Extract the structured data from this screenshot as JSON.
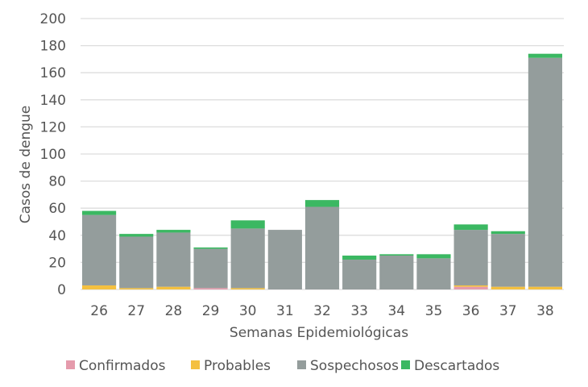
{
  "chart_data": {
    "type": "bar",
    "stacked": true,
    "title": "",
    "xlabel": "Semanas Epidemiológicas",
    "ylabel": "Casos de dengue",
    "ylim": [
      0,
      200
    ],
    "yticks": [
      0,
      20,
      40,
      60,
      80,
      100,
      120,
      140,
      160,
      180,
      200
    ],
    "grid": true,
    "legend_position": "bottom",
    "categories": [
      "26",
      "27",
      "28",
      "29",
      "30",
      "31",
      "32",
      "33",
      "34",
      "35",
      "36",
      "37",
      "38"
    ],
    "series": [
      {
        "name": "Confirmados",
        "color": "#e59bac",
        "values": [
          0,
          0,
          0,
          1,
          0,
          0,
          0,
          0,
          0,
          0,
          2,
          0,
          0
        ]
      },
      {
        "name": "Probables",
        "color": "#f4c040",
        "values": [
          3,
          1,
          2,
          0,
          1,
          0,
          0,
          0,
          0,
          0,
          1,
          2,
          2
        ]
      },
      {
        "name": "Sospechosos",
        "color": "#949d9c",
        "values": [
          52,
          38,
          40,
          29,
          44,
          44,
          61,
          22,
          25,
          23,
          41,
          39,
          169
        ]
      },
      {
        "name": "Descartados",
        "color": "#3bb862",
        "values": [
          3,
          2,
          2,
          1,
          6,
          0,
          5,
          3,
          1,
          3,
          4,
          2,
          3
        ]
      }
    ]
  }
}
